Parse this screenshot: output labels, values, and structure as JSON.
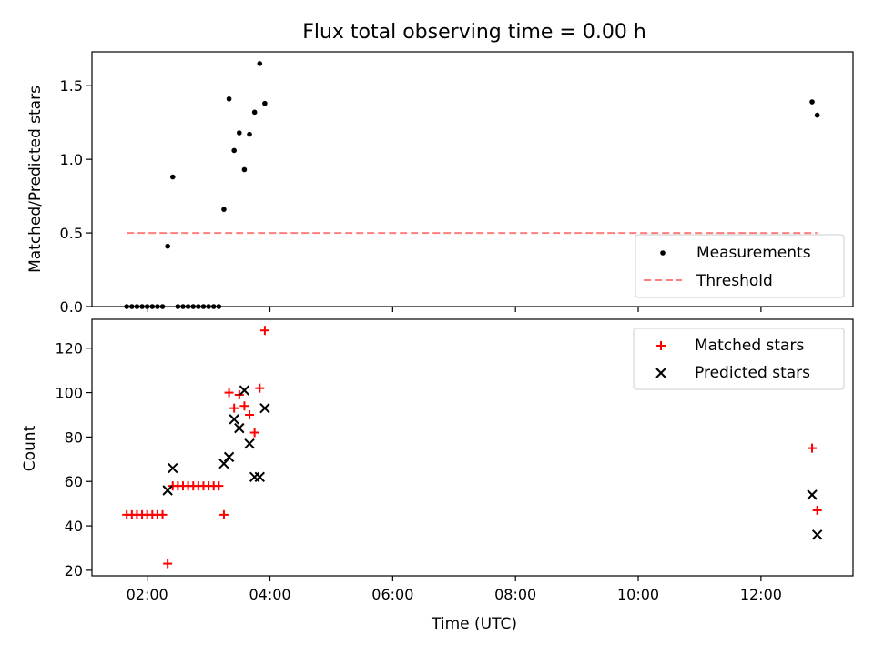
{
  "chart_data": [
    {
      "type": "scatter",
      "title": "Flux total observing time = 0.00 h",
      "xlabel": "",
      "ylabel": "Matched/Predicted stars",
      "x_unit": "hours UTC",
      "xlim": [
        "01:06",
        "13:30"
      ],
      "ylim": [
        0,
        1.73
      ],
      "yticks": [
        "0.0",
        "0.5",
        "1.0",
        "1.5"
      ],
      "xticks_visible": false,
      "legend_position": "lower-right",
      "series": [
        {
          "name": "Measurements",
          "marker": "dot",
          "color": "#000000",
          "points": [
            [
              "01:40",
              0.0
            ],
            [
              "01:45",
              0.0
            ],
            [
              "01:50",
              0.0
            ],
            [
              "01:55",
              0.0
            ],
            [
              "02:00",
              0.0
            ],
            [
              "02:05",
              0.0
            ],
            [
              "02:10",
              0.0
            ],
            [
              "02:15",
              0.0
            ],
            [
              "02:20",
              0.41
            ],
            [
              "02:25",
              0.88
            ],
            [
              "02:30",
              0.0
            ],
            [
              "02:35",
              0.0
            ],
            [
              "02:40",
              0.0
            ],
            [
              "02:45",
              0.0
            ],
            [
              "02:50",
              0.0
            ],
            [
              "02:55",
              0.0
            ],
            [
              "03:00",
              0.0
            ],
            [
              "03:05",
              0.0
            ],
            [
              "03:10",
              0.0
            ],
            [
              "03:15",
              0.66
            ],
            [
              "03:20",
              1.41
            ],
            [
              "03:25",
              1.06
            ],
            [
              "03:30",
              1.18
            ],
            [
              "03:35",
              0.93
            ],
            [
              "03:40",
              1.17
            ],
            [
              "03:45",
              1.32
            ],
            [
              "03:50",
              1.65
            ],
            [
              "03:55",
              1.38
            ],
            [
              "12:50",
              1.39
            ],
            [
              "12:55",
              1.3
            ]
          ]
        },
        {
          "name": "Threshold",
          "marker": "dashed-line",
          "color": "#ff7f7f",
          "x_range": [
            "01:40",
            "12:55"
          ],
          "value": 0.5
        }
      ]
    },
    {
      "type": "scatter",
      "xlabel": "Time (UTC)",
      "ylabel": "Count",
      "x_unit": "hours UTC",
      "xlim": [
        "01:06",
        "13:30"
      ],
      "ylim": [
        17.5,
        133
      ],
      "yticks": [
        "20",
        "40",
        "60",
        "80",
        "100",
        "120"
      ],
      "xticks": [
        "02:00",
        "04:00",
        "06:00",
        "08:00",
        "10:00",
        "12:00"
      ],
      "legend_position": "upper-right",
      "series": [
        {
          "name": "Matched stars",
          "marker": "plus",
          "color": "#ff0000",
          "points": [
            [
              "01:40",
              45
            ],
            [
              "01:45",
              45
            ],
            [
              "01:50",
              45
            ],
            [
              "01:55",
              45
            ],
            [
              "02:00",
              45
            ],
            [
              "02:05",
              45
            ],
            [
              "02:10",
              45
            ],
            [
              "02:15",
              45
            ],
            [
              "02:20",
              23
            ],
            [
              "02:25",
              58
            ],
            [
              "02:30",
              58
            ],
            [
              "02:35",
              58
            ],
            [
              "02:40",
              58
            ],
            [
              "02:45",
              58
            ],
            [
              "02:50",
              58
            ],
            [
              "02:55",
              58
            ],
            [
              "03:00",
              58
            ],
            [
              "03:05",
              58
            ],
            [
              "03:10",
              58
            ],
            [
              "03:15",
              45
            ],
            [
              "03:20",
              100
            ],
            [
              "03:25",
              93
            ],
            [
              "03:30",
              99
            ],
            [
              "03:35",
              94
            ],
            [
              "03:40",
              90
            ],
            [
              "03:45",
              82
            ],
            [
              "03:50",
              102
            ],
            [
              "03:55",
              128
            ],
            [
              "12:50",
              75
            ],
            [
              "12:55",
              47
            ]
          ]
        },
        {
          "name": "Predicted stars",
          "marker": "x",
          "color": "#000000",
          "points": [
            [
              "02:20",
              56
            ],
            [
              "02:25",
              66
            ],
            [
              "03:15",
              68
            ],
            [
              "03:20",
              71
            ],
            [
              "03:25",
              88
            ],
            [
              "03:30",
              84
            ],
            [
              "03:35",
              101
            ],
            [
              "03:40",
              77
            ],
            [
              "03:45",
              62
            ],
            [
              "03:50",
              62
            ],
            [
              "03:55",
              93
            ],
            [
              "12:50",
              54
            ],
            [
              "12:55",
              36
            ]
          ]
        }
      ]
    }
  ]
}
